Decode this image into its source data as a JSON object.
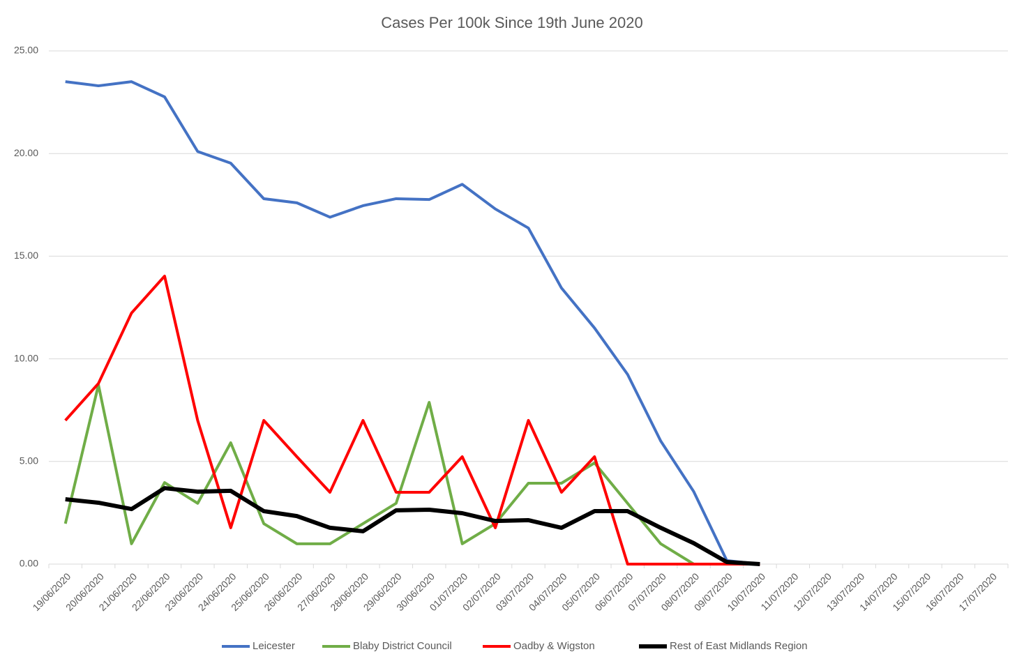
{
  "chart_data": {
    "type": "line",
    "title": "Cases Per 100k Since 19th June 2020",
    "categories": [
      "19/06/2020",
      "20/06/2020",
      "21/06/2020",
      "22/06/2020",
      "23/06/2020",
      "24/06/2020",
      "25/06/2020",
      "26/06/2020",
      "27/06/2020",
      "28/06/2020",
      "29/06/2020",
      "30/06/2020",
      "01/07/2020",
      "02/07/2020",
      "03/07/2020",
      "04/07/2020",
      "05/07/2020",
      "06/07/2020",
      "07/07/2020",
      "08/07/2020",
      "09/07/2020",
      "10/07/2020",
      "11/07/2020",
      "12/07/2020",
      "13/07/2020",
      "14/07/2020",
      "15/07/2020",
      "16/07/2020",
      "17/07/2020"
    ],
    "series": [
      {
        "name": "Leicester",
        "color": "#4472c4",
        "width": 4,
        "values": [
          23.5,
          23.3,
          23.5,
          22.76,
          20.1,
          19.53,
          17.8,
          17.6,
          16.9,
          17.46,
          17.8,
          17.76,
          18.5,
          17.3,
          16.37,
          13.45,
          11.5,
          9.24,
          6.0,
          3.53,
          0.17,
          0,
          null,
          null,
          null,
          null,
          null,
          null,
          null
        ]
      },
      {
        "name": "Blaby District Council",
        "color": "#70ad47",
        "width": 4,
        "values": [
          1.97,
          8.73,
          0.99,
          3.97,
          2.96,
          5.91,
          1.97,
          0.99,
          0.99,
          1.97,
          2.96,
          7.88,
          0.99,
          1.97,
          3.94,
          3.94,
          4.93,
          2.96,
          0.99,
          0,
          0,
          0,
          null,
          null,
          null,
          null,
          null,
          null,
          null
        ]
      },
      {
        "name": "Oadby & Wigston",
        "color": "#ff0000",
        "width": 4,
        "values": [
          7.0,
          8.8,
          12.23,
          14.03,
          7.0,
          1.77,
          7.0,
          5.23,
          3.5,
          7.0,
          3.5,
          3.5,
          5.23,
          1.77,
          7.0,
          3.5,
          5.23,
          0,
          0,
          0,
          0,
          0,
          null,
          null,
          null,
          null,
          null,
          null,
          null
        ]
      },
      {
        "name": "Rest of East Midlands Region",
        "color": "#000000",
        "width": 6,
        "values": [
          3.16,
          2.99,
          2.68,
          3.7,
          3.53,
          3.57,
          2.58,
          2.34,
          1.77,
          1.6,
          2.62,
          2.65,
          2.48,
          2.1,
          2.14,
          1.77,
          2.58,
          2.58,
          1.77,
          1.02,
          0.1,
          0,
          null,
          null,
          null,
          null,
          null,
          null,
          null
        ]
      }
    ],
    "ylim": [
      0,
      25
    ],
    "yticks": [
      {
        "value": 0,
        "label": "0.00"
      },
      {
        "value": 5,
        "label": "5.00"
      },
      {
        "value": 10,
        "label": "10.00"
      },
      {
        "value": 15,
        "label": "15.00"
      },
      {
        "value": 20,
        "label": "20.00"
      },
      {
        "value": 25,
        "label": "25.00"
      }
    ],
    "grid": true,
    "legend": "bottom"
  }
}
